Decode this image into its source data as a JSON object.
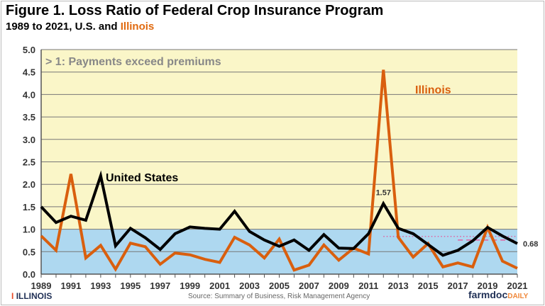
{
  "title": "Figure 1. Loss Ratio of Federal Crop Insurance Program",
  "subtitle_prefix": "1989 to 2021, U.S. and ",
  "subtitle_il": "Illinois",
  "source": "Source:  Summary of Business, Risk Management Agency",
  "logo_left": "ILLINOIS",
  "logo_left_mark": "I",
  "logo_right_main": "farmdoc",
  "logo_right_sub": "DAILY",
  "chart_data": {
    "type": "line",
    "x": [
      1989,
      1990,
      1991,
      1992,
      1993,
      1994,
      1995,
      1996,
      1997,
      1998,
      1999,
      2000,
      2001,
      2002,
      2003,
      2004,
      2005,
      2006,
      2007,
      2008,
      2009,
      2010,
      2011,
      2012,
      2013,
      2014,
      2015,
      2016,
      2017,
      2018,
      2019,
      2020,
      2021
    ],
    "xticks": [
      "1989",
      "1991",
      "1993",
      "1995",
      "1997",
      "1999",
      "2001",
      "2003",
      "2005",
      "2007",
      "2009",
      "2011",
      "2013",
      "2015",
      "2017",
      "2019",
      "2021"
    ],
    "ylim": [
      0,
      5
    ],
    "yticks": [
      "0.0",
      "0.5",
      "1.0",
      "1.5",
      "2.0",
      "2.5",
      "3.0",
      "3.5",
      "4.0",
      "4.5",
      "5.0"
    ],
    "grid": true,
    "annotation": "> 1: Payments exceed premiums",
    "shading": {
      "above_1": "#faf6c8",
      "below_1": "#aed8f0"
    },
    "series": [
      {
        "name": "United States",
        "color": "#000000",
        "label_2012": "1.57",
        "label_2021": "0.68",
        "values": [
          1.5,
          1.15,
          1.29,
          1.2,
          2.19,
          0.63,
          1.02,
          0.81,
          0.55,
          0.9,
          1.05,
          1.02,
          1.0,
          1.4,
          0.95,
          0.76,
          0.62,
          0.76,
          0.53,
          0.88,
          0.58,
          0.57,
          0.9,
          1.57,
          1.02,
          0.9,
          0.66,
          0.42,
          0.53,
          0.74,
          1.04,
          0.85,
          0.68
        ]
      },
      {
        "name": "Illinois",
        "color": "#d95f0e",
        "values": [
          0.85,
          0.53,
          2.23,
          0.36,
          0.64,
          0.11,
          0.69,
          0.61,
          0.22,
          0.47,
          0.43,
          0.33,
          0.26,
          0.82,
          0.65,
          0.36,
          0.78,
          0.09,
          0.2,
          0.65,
          0.31,
          0.58,
          0.45,
          4.55,
          0.82,
          0.38,
          0.68,
          0.16,
          0.25,
          0.16,
          1.04,
          0.29,
          0.13
        ]
      }
    ],
    "reference_lines": [
      {
        "style": "dotted",
        "color": "#e060a0",
        "value": 0.84,
        "from": 2012,
        "to": 2021
      },
      {
        "style": "dashed",
        "color": "#e060a0",
        "value": 0.76,
        "from": 2017,
        "to": 2021
      }
    ]
  }
}
